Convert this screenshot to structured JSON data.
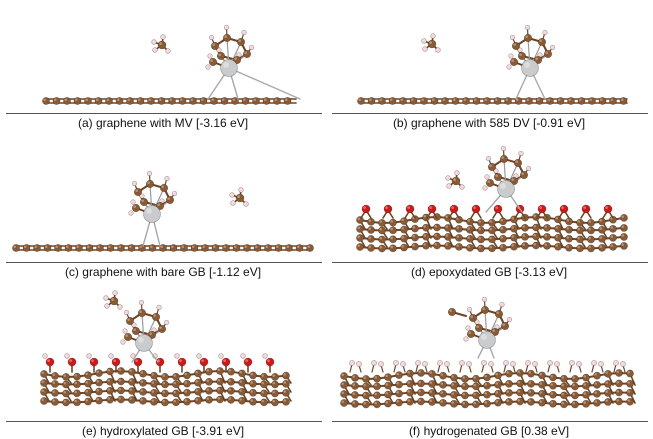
{
  "panels": [
    {
      "caption": "(a) graphene with MV [-3.16 eV]",
      "substrate": "flat-monolayer",
      "adsorbate": "Pt-complex",
      "co_adsorbed": "methyl"
    },
    {
      "caption": "(b) graphene with 585 DV [-0.91 eV]",
      "substrate": "flat-monolayer",
      "adsorbate": "Pt-complex",
      "co_adsorbed": "methyl"
    },
    {
      "caption": "(c) graphene with bare GB [-1.12 eV]",
      "substrate": "flat-monolayer",
      "adsorbate": "Pt-complex",
      "co_adsorbed": "methyl"
    },
    {
      "caption": "(d) epoxydated GB [-3.13 eV]",
      "substrate": "stacked-layers-epoxy",
      "adsorbate": "Pt-complex",
      "co_adsorbed": "methyl"
    },
    {
      "caption": "(e) hydroxylated GB [-3.91 eV]",
      "substrate": "stacked-layers-hydroxyl",
      "adsorbate": "Pt-complex",
      "co_adsorbed": "methyl"
    },
    {
      "caption": "(f) hydrogenated GB [0.38 eV]",
      "substrate": "stacked-layers-hydrogen",
      "adsorbate": "Pt-complex",
      "co_adsorbed": "none"
    }
  ],
  "colors": {
    "carbon": "#8a5a35",
    "carbon_highlight": "#b98a5f",
    "bond": "#6e4526",
    "oxygen": "#d01818",
    "hydrogen": "#f4d6d6",
    "platinum": "#c9cbcc",
    "caption_rule": "#555555",
    "text": "#111111"
  },
  "atom_legend": {
    "carbon": "brown-sphere",
    "oxygen": "red-sphere",
    "hydrogen": "pale-pink-sphere",
    "platinum": "silver-sphere"
  }
}
